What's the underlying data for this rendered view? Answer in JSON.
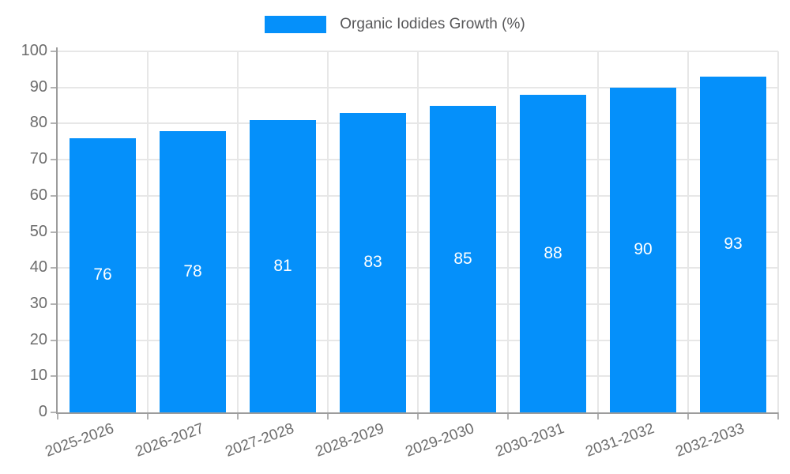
{
  "chart_data": {
    "type": "bar",
    "title": "",
    "legend": "Organic Iodides Growth (%)",
    "legend_position": "top-center",
    "categories": [
      "2025-2026",
      "2026-2027",
      "2027-2028",
      "2028-2029",
      "2029-2030",
      "2030-2031",
      "2031-2032",
      "2032-2033"
    ],
    "values": [
      76,
      78,
      81,
      83,
      85,
      88,
      90,
      93
    ],
    "ylim": [
      0,
      100
    ],
    "yticks": [
      0,
      10,
      20,
      30,
      40,
      50,
      60,
      70,
      80,
      90,
      100
    ],
    "grid": true,
    "xlabel": "",
    "ylabel": "",
    "colors": {
      "bar": "#0590fa",
      "value_label": "#ffffff",
      "axis_text": "#6d6d6d",
      "legend_text": "#58585a",
      "grid_line": "#e7e7e7",
      "axis_line": "#9c9c9c",
      "tick": "#b3b3b3"
    }
  }
}
